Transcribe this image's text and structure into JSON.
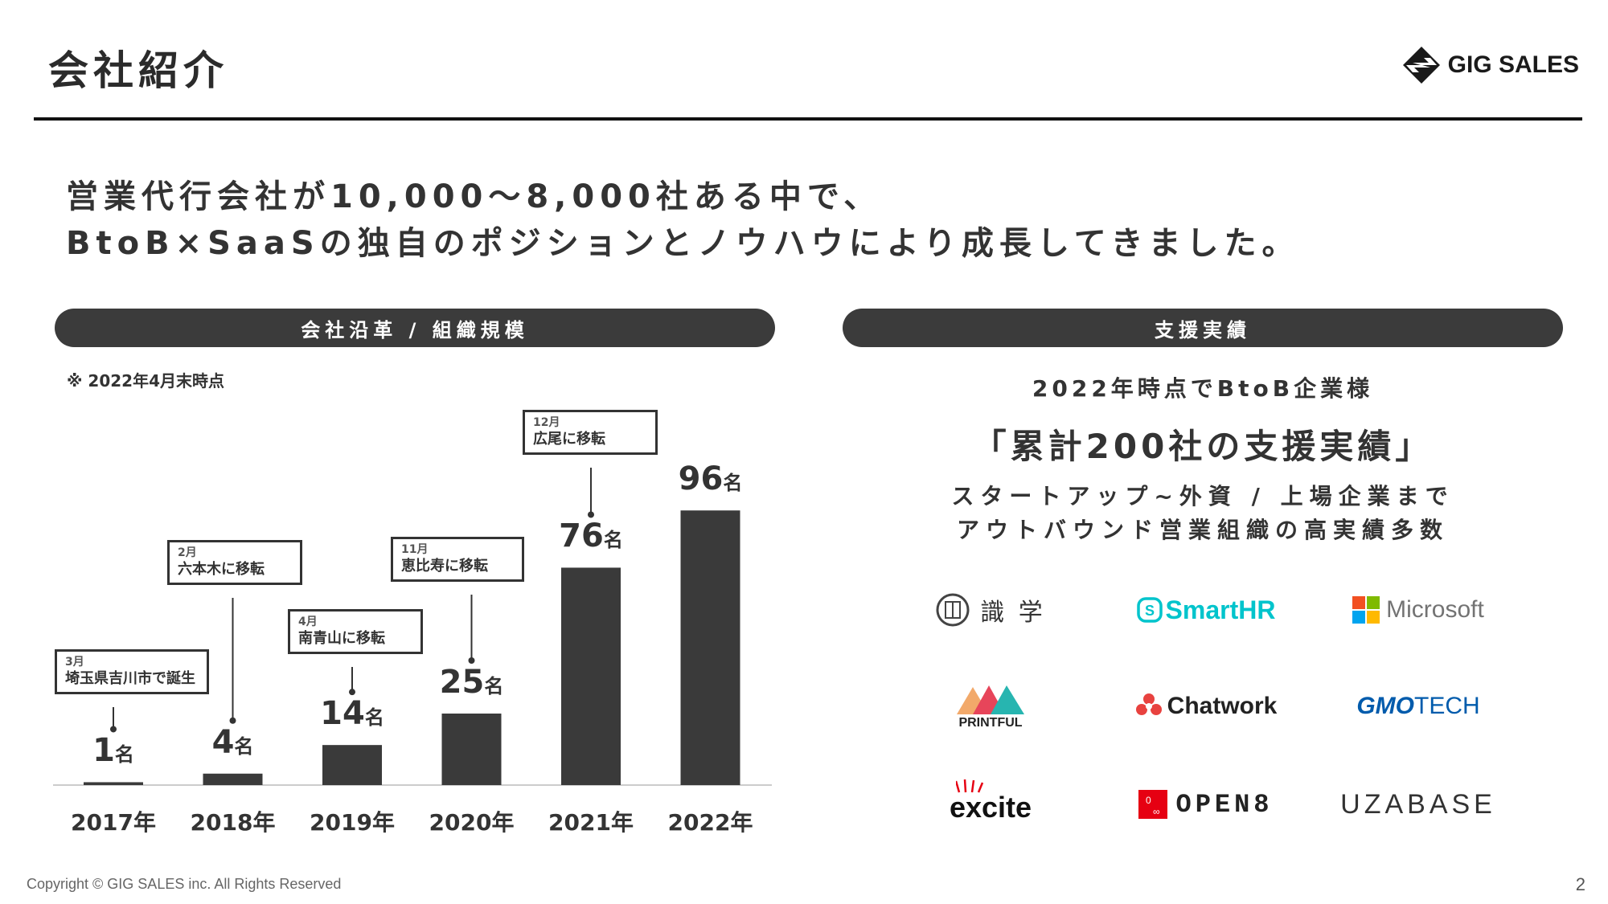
{
  "header": {
    "title": "会社紹介",
    "logo_text": "GIG SALES"
  },
  "headline": {
    "line1": "営業代行会社が10,000〜8,000社ある中で、",
    "line2": "BtoB×SaaSの独自のポジションとノウハウにより成長してきました。"
  },
  "left_panel": {
    "heading": "会社沿革 / 組織規模",
    "note": "※ 2022年4月末時点"
  },
  "chart_data": {
    "type": "bar",
    "categories": [
      "2017年",
      "2018年",
      "2019年",
      "2020年",
      "2021年",
      "2022年"
    ],
    "values": [
      1,
      4,
      14,
      25,
      76,
      96
    ],
    "value_unit": "名",
    "ylim": [
      0,
      100
    ],
    "annotations": [
      {
        "category": "2017年",
        "month": "3月",
        "text": "埼玉県吉川市で誕生"
      },
      {
        "category": "2018年",
        "month": "2月",
        "text": "六本木に移転"
      },
      {
        "category": "2019年",
        "month": "4月",
        "text": "南青山に移転"
      },
      {
        "category": "2020年",
        "month": "11月",
        "text": "恵比寿に移転"
      },
      {
        "category": "2021年",
        "month": "12月",
        "text": "広尾に移転"
      }
    ],
    "colors": {
      "bar": "#3a3a3a"
    }
  },
  "right_panel": {
    "heading": "支援実績",
    "subtitle": "2022年時点でBtoB企業様",
    "big_text": "「累計200社の支援実績」",
    "desc1": "スタートアップ~外資 / 上場企業まで",
    "desc2": "アウトバウンド営業組織の高実績多数",
    "clients": [
      {
        "name": "識 学",
        "icon": "shikigaku-seal-icon"
      },
      {
        "name": "SmartHR",
        "icon": "smarthr-icon"
      },
      {
        "name": "Microsoft",
        "icon": "microsoft-icon"
      },
      {
        "name": "PRINTFUL",
        "icon": "printful-icon"
      },
      {
        "name": "Chatwork",
        "icon": "chatwork-icon"
      },
      {
        "name": "GMO",
        "name2": "TECH",
        "icon": "gmo-tech-icon"
      },
      {
        "name": "excite",
        "icon": "excite-icon"
      },
      {
        "name": "OPEN8",
        "icon": "open8-icon"
      },
      {
        "name": "UZABASE",
        "icon": "uzabase-icon"
      }
    ]
  },
  "footer": {
    "copyright": "Copyright © GIG SALES inc. All Rights Reserved",
    "page": "2"
  },
  "colors": {
    "dark": "#3b3b3b",
    "smarthr": "#00c4cc",
    "gmo": "#005bac",
    "open8": "#e60012",
    "chatwork": "#e8423f"
  }
}
